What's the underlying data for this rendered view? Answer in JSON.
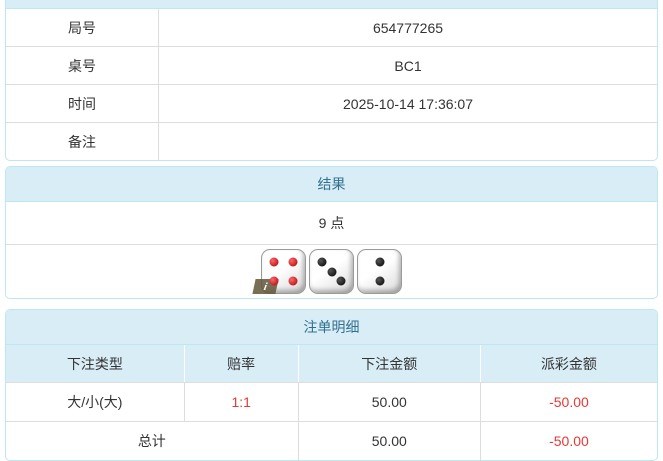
{
  "info_table": {
    "rows": [
      {
        "label": "局号",
        "value": "654777265"
      },
      {
        "label": "桌号",
        "value": "BC1"
      },
      {
        "label": "时间",
        "value": "2025-10-14 17:36:07"
      },
      {
        "label": "备注",
        "value": ""
      }
    ]
  },
  "result_panel": {
    "title": "结果",
    "points": "9 点",
    "dice": [
      {
        "value": 4,
        "pip_color": "red"
      },
      {
        "value": 3,
        "pip_color": "black"
      },
      {
        "value": 2,
        "pip_color": "black"
      }
    ],
    "info_badge": "i"
  },
  "bets_panel": {
    "title": "注单明细",
    "columns": [
      "下注类型",
      "赔率",
      "下注金额",
      "派彩金额"
    ],
    "rows": [
      {
        "bet_type": "大/小(大)",
        "odds": "1:1",
        "bet_amount": "50.00",
        "payout_amount": "-50.00"
      }
    ],
    "total": {
      "label": "总计",
      "bet_amount": "50.00",
      "payout_amount": "-50.00"
    }
  },
  "colors": {
    "header_bg": "#d9edf7",
    "panel_border": "#bce8f1",
    "header_text": "#31708f",
    "divider": "#dddddd",
    "text": "#333333",
    "negative": "#e53935"
  }
}
